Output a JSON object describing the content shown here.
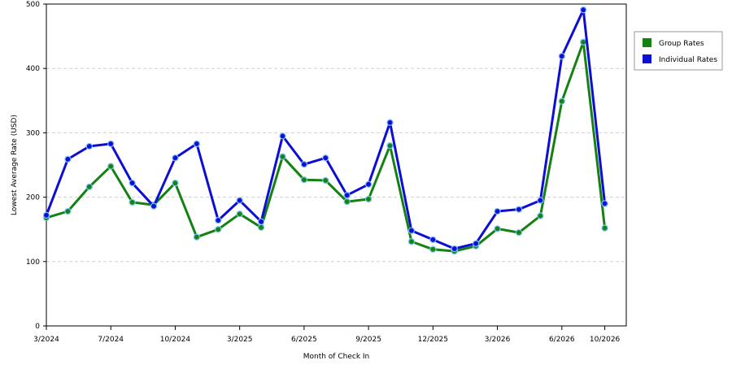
{
  "chart_data": {
    "type": "line",
    "title": "",
    "xlabel": "Month of Check In",
    "ylabel": "Lowest Average Rate (USD)",
    "ylim": [
      0,
      500
    ],
    "yticks": [
      "0",
      "100",
      "200",
      "300",
      "400",
      "500"
    ],
    "xlim_months": 31,
    "xticks": [
      {
        "label": "3/2024",
        "month_index": 0
      },
      {
        "label": "7/2024",
        "month_index": 3
      },
      {
        "label": "10/2024",
        "month_index": 6
      },
      {
        "label": "3/2025",
        "month_index": 9
      },
      {
        "label": "6/2025",
        "month_index": 12
      },
      {
        "label": "9/2025",
        "month_index": 15
      },
      {
        "label": "12/2025",
        "month_index": 18
      },
      {
        "label": "3/2026",
        "month_index": 21
      },
      {
        "label": "6/2026",
        "month_index": 24
      },
      {
        "label": "10/2026",
        "month_index": 26
      }
    ],
    "grid": "horizontal-dashed",
    "legend_position": "right",
    "series": [
      {
        "name": "Group Rates",
        "color": "#138213",
        "values": [
          168,
          178,
          216,
          248,
          192,
          188,
          222,
          138,
          150,
          174,
          153,
          263,
          227,
          226,
          193,
          197,
          280,
          131,
          119,
          116,
          124,
          151,
          145,
          171,
          349,
          441,
          152
        ]
      },
      {
        "name": "Individual Rates",
        "color": "#0d0dd5",
        "values": [
          172,
          259,
          279,
          283,
          222,
          186,
          261,
          283,
          164,
          195,
          162,
          295,
          251,
          261,
          203,
          220,
          316,
          148,
          134,
          120,
          128,
          178,
          181,
          195,
          419,
          491,
          190
        ]
      }
    ]
  }
}
